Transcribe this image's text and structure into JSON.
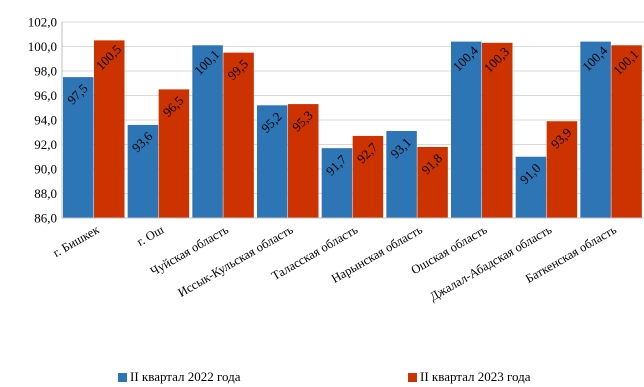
{
  "chart_data": {
    "type": "bar",
    "categories": [
      "г. Бишкек",
      "г. Ош",
      "Чуйская область",
      "Иссык-Кульская область",
      "Таласская область",
      "Нарынская область",
      "Ошская область",
      "Джалал-Абадская область",
      "Баткенская область"
    ],
    "series": [
      {
        "name": "II квартал 2022 года",
        "color": "#2e75b6",
        "values": [
          97.5,
          93.6,
          100.1,
          95.2,
          91.7,
          93.1,
          100.4,
          91.0,
          100.4
        ],
        "labels": [
          "97,5",
          "93,6",
          "100,1",
          "95,2",
          "91,7",
          "93,1",
          "100,4",
          "91,0",
          "100,4"
        ]
      },
      {
        "name": "II квартал 2023 года",
        "color": "#cc3300",
        "values": [
          100.5,
          96.5,
          99.5,
          95.3,
          92.7,
          91.8,
          100.3,
          93.9,
          100.1
        ],
        "labels": [
          "100,5",
          "96,5",
          "99,5",
          "95,3",
          "92,7",
          "91,8",
          "100,3",
          "93,9",
          "100,1"
        ]
      }
    ],
    "ylim": [
      86.0,
      102.0
    ],
    "yticks": [
      86.0,
      88.0,
      90.0,
      92.0,
      94.0,
      96.0,
      98.0,
      100.0,
      102.0
    ],
    "ytick_labels": [
      "86,0",
      "88,0",
      "90,0",
      "92,0",
      "94,0",
      "96,0",
      "98,0",
      "100,0",
      "102,0"
    ],
    "grid": true,
    "legend_position": "bottom"
  }
}
